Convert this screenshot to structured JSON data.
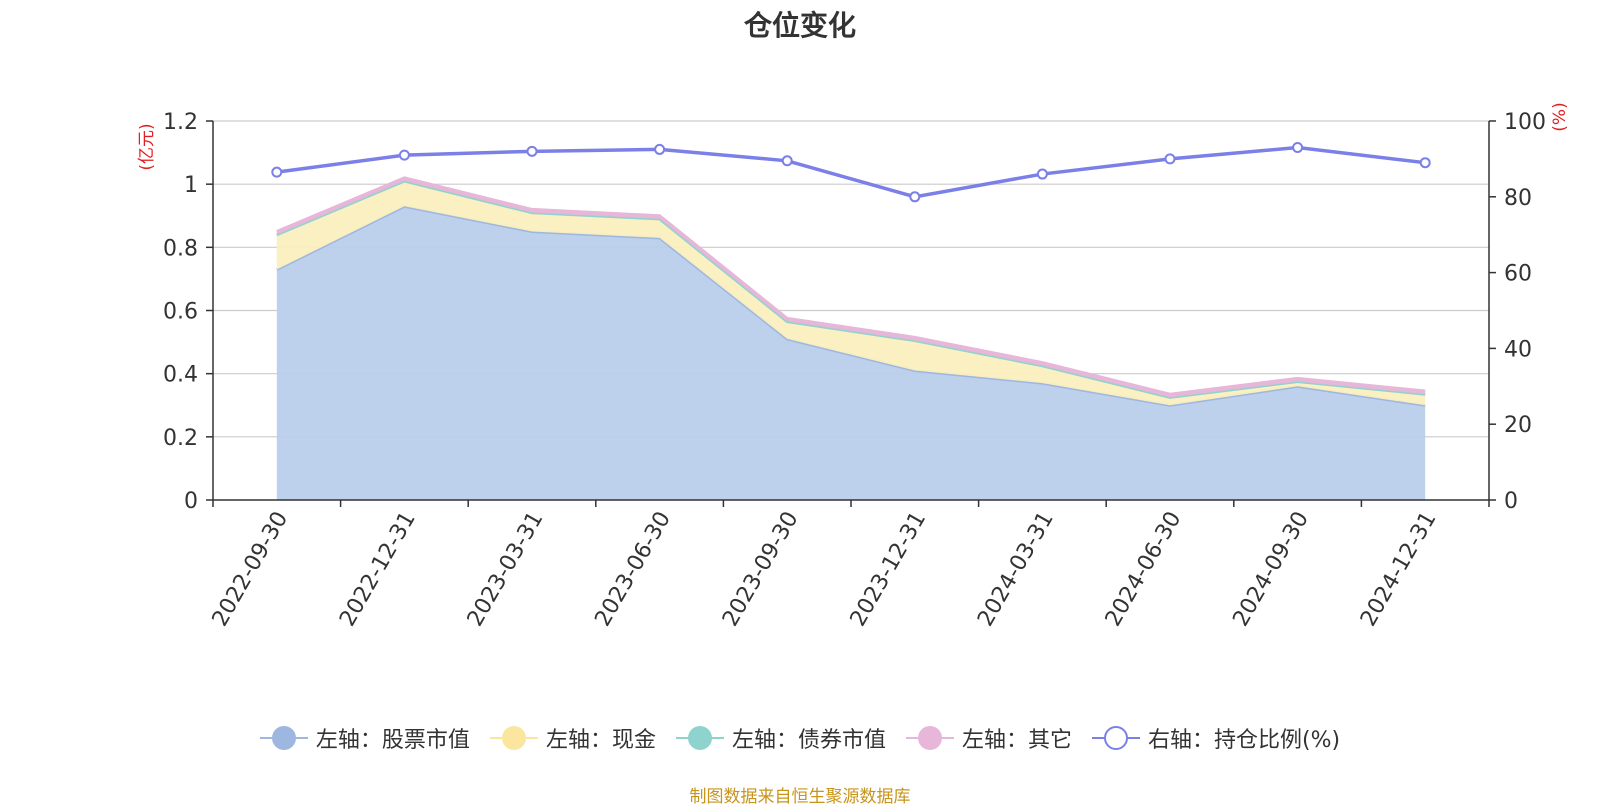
{
  "title": "仓位变化",
  "source": "制图数据来自恒生聚源数据库",
  "legend": [
    {
      "label": "左轴：股票市值",
      "color": "#9db7e0",
      "hollow": false
    },
    {
      "label": "左轴：现金",
      "color": "#fbe6a0",
      "hollow": false
    },
    {
      "label": "左轴：债券市值",
      "color": "#8fd3cf",
      "hollow": false
    },
    {
      "label": "左轴：其它",
      "color": "#e7b6d9",
      "hollow": false
    },
    {
      "label": "右轴：持仓比例(%)",
      "color": "#7b7fe8",
      "hollow": true
    }
  ],
  "chart_data": {
    "type": "area",
    "categories": [
      "2022-09-30",
      "2022-12-31",
      "2023-03-31",
      "2023-06-30",
      "2023-09-30",
      "2023-12-31",
      "2024-03-31",
      "2024-06-30",
      "2024-09-30",
      "2024-12-31"
    ],
    "left_axis": {
      "label": "(亿元)",
      "ylim": [
        0,
        1.2
      ],
      "ticks": [
        "0",
        "0.2",
        "0.4",
        "0.6",
        "0.8",
        "1",
        "1.2"
      ],
      "tick_values": [
        0,
        0.2,
        0.4,
        0.6,
        0.8,
        1.0,
        1.2
      ]
    },
    "right_axis": {
      "label": "(%)",
      "ylim": [
        0,
        100
      ],
      "ticks": [
        "0",
        "20",
        "40",
        "60",
        "80",
        "100"
      ],
      "tick_values": [
        0,
        20,
        40,
        60,
        80,
        100
      ]
    },
    "stacked_series": [
      {
        "name": "左轴：股票市值",
        "color": "#9db7e0",
        "fill": "#b9cdeb",
        "values": [
          0.73,
          0.93,
          0.85,
          0.83,
          0.51,
          0.41,
          0.37,
          0.3,
          0.36,
          0.3
        ]
      },
      {
        "name": "左轴：现金",
        "color": "#fbe6a0",
        "fill": "#fbefbf",
        "values": [
          0.11,
          0.08,
          0.06,
          0.06,
          0.055,
          0.095,
          0.055,
          0.025,
          0.015,
          0.035
        ]
      },
      {
        "name": "左轴：债券市值",
        "color": "#8fd3cf",
        "fill": "#8fd3cf",
        "values": [
          0,
          0,
          0,
          0,
          0,
          0,
          0,
          0,
          0,
          0
        ]
      },
      {
        "name": "左轴：其它",
        "color": "#e7b6d9",
        "fill": "#e7b6d9",
        "values": [
          0.01,
          0.01,
          0.01,
          0.01,
          0.01,
          0.01,
          0.01,
          0.01,
          0.01,
          0.01
        ]
      }
    ],
    "line_series": {
      "name": "右轴：持仓比例(%)",
      "color": "#7b7fe8",
      "axis": "right",
      "values": [
        86.5,
        91.0,
        92.0,
        92.5,
        89.5,
        80.0,
        86.0,
        90.0,
        93.0,
        89.0
      ]
    },
    "grid": true,
    "legend_position": "bottom"
  }
}
